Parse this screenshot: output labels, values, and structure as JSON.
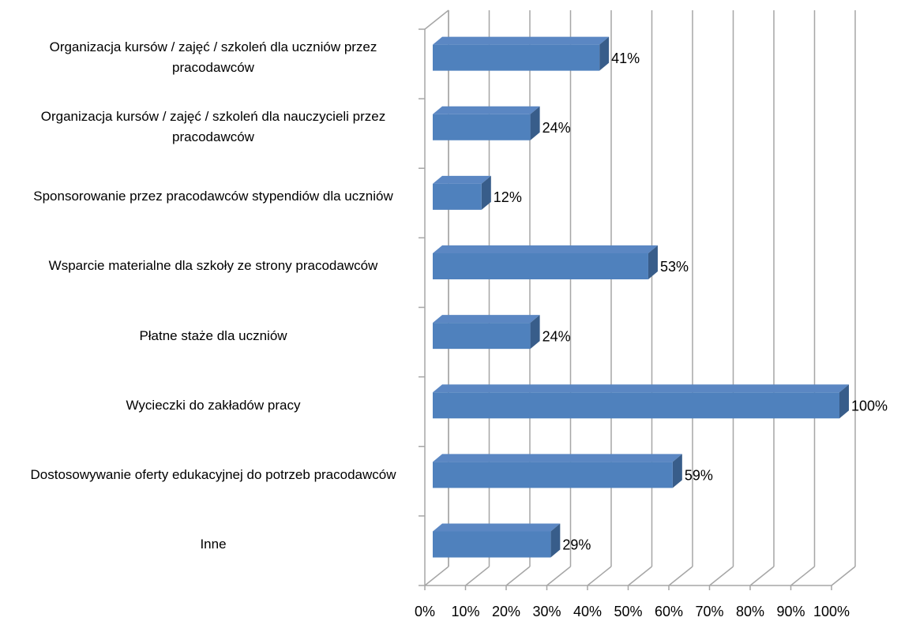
{
  "chart_data": {
    "type": "bar3d_horizontal",
    "categories": [
      "Organizacja kursów / zajęć / szkoleń dla uczniów przez pracodawców",
      "Organizacja kursów / zajęć / szkoleń dla nauczycieli przez pracodawców",
      "Sponsorowanie przez pracodawców stypendiów dla uczniów",
      "Wsparcie materialne dla szkoły ze strony pracodawców",
      "Płatne staże dla uczniów",
      "Wycieczki do zakładów pracy",
      "Dostosowywanie oferty edukacyjnej do potrzeb pracodawców",
      "Inne"
    ],
    "values": [
      41,
      24,
      12,
      53,
      24,
      100,
      59,
      29
    ],
    "value_labels": [
      "41%",
      "24%",
      "12%",
      "53%",
      "24%",
      "100%",
      "59%",
      "29%"
    ],
    "color": "#4f81bd",
    "xlim": [
      0,
      100
    ],
    "xticks": [
      {
        "value": 0,
        "label": "0%"
      },
      {
        "value": 10,
        "label": "10%"
      },
      {
        "value": 20,
        "label": "20%"
      },
      {
        "value": 30,
        "label": "30%"
      },
      {
        "value": 40,
        "label": "40%"
      },
      {
        "value": 50,
        "label": "50%"
      },
      {
        "value": 60,
        "label": "60%"
      },
      {
        "value": 70,
        "label": "70%"
      },
      {
        "value": 80,
        "label": "80%"
      },
      {
        "value": 90,
        "label": "90%"
      },
      {
        "value": 100,
        "label": "100%"
      }
    ],
    "grid": true
  }
}
